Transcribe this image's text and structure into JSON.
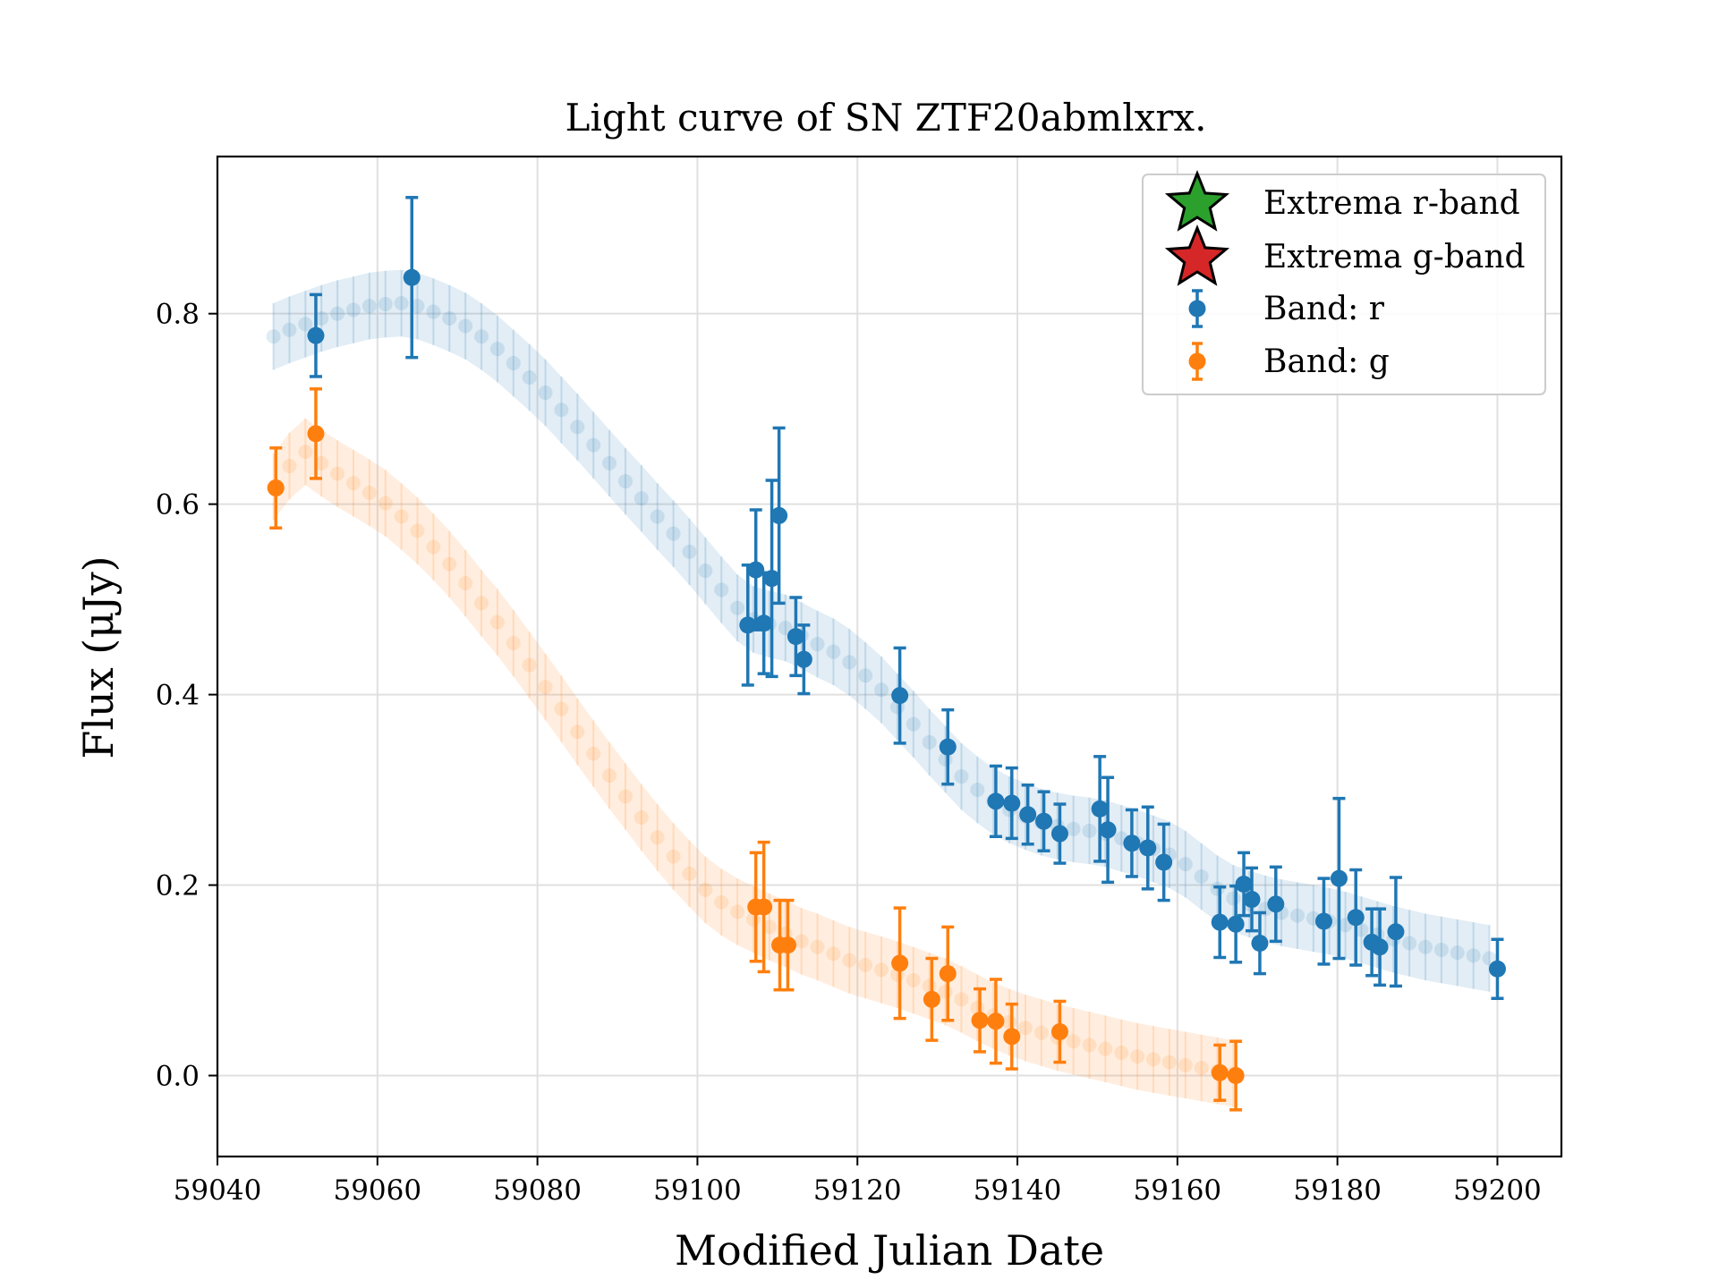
{
  "chart_data": {
    "type": "scatter",
    "title": "Light curve of SN ZTF20abmlxrx.",
    "xlabel": "Modified Julian Date",
    "ylabel": "Flux (μJy)",
    "xlim": [
      59040,
      59208
    ],
    "ylim": [
      -0.085,
      0.965
    ],
    "x_ticks": [
      "59040",
      "59060",
      "59080",
      "59100",
      "59120",
      "59140",
      "59160",
      "59180",
      "59200"
    ],
    "y_ticks": [
      "0.0",
      "0.2",
      "0.4",
      "0.6",
      "0.8"
    ],
    "grid": true,
    "legend_position": "top-right",
    "legend": [
      "Extrema r-band",
      "Extrema g-band",
      "Band: r",
      "Band: g"
    ],
    "colors": {
      "r": "#1f77b4",
      "g": "#ff7f0e",
      "extrema_r": "#2ca02c",
      "extrema_g": "#d62728"
    },
    "series": [
      {
        "name": "Band: r",
        "color": "#1f77b4",
        "points": [
          {
            "x": 59052.3,
            "y": 0.777,
            "err": 0.043
          },
          {
            "x": 59064.3,
            "y": 0.838,
            "err": 0.084
          },
          {
            "x": 59106.3,
            "y": 0.473,
            "err": 0.063
          },
          {
            "x": 59107.3,
            "y": 0.531,
            "err": 0.063
          },
          {
            "x": 59108.3,
            "y": 0.475,
            "err": 0.053
          },
          {
            "x": 59109.3,
            "y": 0.522,
            "err": 0.103
          },
          {
            "x": 59110.2,
            "y": 0.588,
            "err": 0.092
          },
          {
            "x": 59112.3,
            "y": 0.461,
            "err": 0.041
          },
          {
            "x": 59113.3,
            "y": 0.437,
            "err": 0.036
          },
          {
            "x": 59125.3,
            "y": 0.399,
            "err": 0.05
          },
          {
            "x": 59131.3,
            "y": 0.345,
            "err": 0.039
          },
          {
            "x": 59137.3,
            "y": 0.288,
            "err": 0.037
          },
          {
            "x": 59139.3,
            "y": 0.286,
            "err": 0.037
          },
          {
            "x": 59141.3,
            "y": 0.274,
            "err": 0.031
          },
          {
            "x": 59143.3,
            "y": 0.267,
            "err": 0.031
          },
          {
            "x": 59145.3,
            "y": 0.254,
            "err": 0.031
          },
          {
            "x": 59150.3,
            "y": 0.28,
            "err": 0.055
          },
          {
            "x": 59151.3,
            "y": 0.258,
            "err": 0.055
          },
          {
            "x": 59154.3,
            "y": 0.244,
            "err": 0.035
          },
          {
            "x": 59156.3,
            "y": 0.239,
            "err": 0.043
          },
          {
            "x": 59158.3,
            "y": 0.224,
            "err": 0.04
          },
          {
            "x": 59165.3,
            "y": 0.161,
            "err": 0.037
          },
          {
            "x": 59167.3,
            "y": 0.159,
            "err": 0.04
          },
          {
            "x": 59168.3,
            "y": 0.201,
            "err": 0.033
          },
          {
            "x": 59169.3,
            "y": 0.185,
            "err": 0.033
          },
          {
            "x": 59170.3,
            "y": 0.139,
            "err": 0.032
          },
          {
            "x": 59172.3,
            "y": 0.18,
            "err": 0.039
          },
          {
            "x": 59178.3,
            "y": 0.162,
            "err": 0.045
          },
          {
            "x": 59180.2,
            "y": 0.207,
            "err": 0.084
          },
          {
            "x": 59182.3,
            "y": 0.166,
            "err": 0.05
          },
          {
            "x": 59184.3,
            "y": 0.14,
            "err": 0.035
          },
          {
            "x": 59185.3,
            "y": 0.135,
            "err": 0.04
          },
          {
            "x": 59187.3,
            "y": 0.151,
            "err": 0.057
          },
          {
            "x": 59200.0,
            "y": 0.112,
            "err": 0.031
          }
        ],
        "model": {
          "x": [
            59047,
            59049,
            59051,
            59053,
            59055,
            59057,
            59059,
            59061,
            59063,
            59065,
            59067,
            59069,
            59071,
            59073,
            59075,
            59077,
            59079,
            59081,
            59083,
            59085,
            59087,
            59089,
            59091,
            59093,
            59095,
            59097,
            59099,
            59101,
            59103,
            59105,
            59107,
            59109,
            59111,
            59113,
            59115,
            59117,
            59119,
            59121,
            59123,
            59125,
            59127,
            59129,
            59131,
            59133,
            59135,
            59137,
            59139,
            59141,
            59143,
            59145,
            59147,
            59149,
            59151,
            59153,
            59155,
            59157,
            59159,
            59161,
            59163,
            59165,
            59167,
            59169,
            59171,
            59173,
            59175,
            59177,
            59179,
            59181,
            59183,
            59185,
            59187,
            59189,
            59191,
            59193,
            59195,
            59197,
            59199
          ],
          "y": [
            0.776,
            0.783,
            0.789,
            0.795,
            0.8,
            0.804,
            0.808,
            0.81,
            0.811,
            0.808,
            0.802,
            0.795,
            0.787,
            0.776,
            0.763,
            0.748,
            0.733,
            0.717,
            0.699,
            0.681,
            0.662,
            0.643,
            0.624,
            0.606,
            0.587,
            0.569,
            0.55,
            0.53,
            0.51,
            0.491,
            0.479,
            0.474,
            0.47,
            0.462,
            0.453,
            0.445,
            0.434,
            0.42,
            0.405,
            0.387,
            0.369,
            0.35,
            0.332,
            0.314,
            0.3,
            0.288,
            0.279,
            0.272,
            0.266,
            0.262,
            0.259,
            0.257,
            0.254,
            0.249,
            0.244,
            0.238,
            0.232,
            0.222,
            0.209,
            0.196,
            0.186,
            0.18,
            0.175,
            0.171,
            0.168,
            0.165,
            0.162,
            0.158,
            0.153,
            0.148,
            0.143,
            0.139,
            0.135,
            0.132,
            0.129,
            0.126,
            0.123
          ],
          "err": 0.035
        }
      },
      {
        "name": "Band: g",
        "color": "#ff7f0e",
        "points": [
          {
            "x": 59047.3,
            "y": 0.617,
            "err": 0.042
          },
          {
            "x": 59052.3,
            "y": 0.674,
            "err": 0.047
          },
          {
            "x": 59107.3,
            "y": 0.177,
            "err": 0.057
          },
          {
            "x": 59108.3,
            "y": 0.177,
            "err": 0.068
          },
          {
            "x": 59110.3,
            "y": 0.137,
            "err": 0.047
          },
          {
            "x": 59111.3,
            "y": 0.137,
            "err": 0.047
          },
          {
            "x": 59125.3,
            "y": 0.118,
            "err": 0.058
          },
          {
            "x": 59129.3,
            "y": 0.08,
            "err": 0.043
          },
          {
            "x": 59131.3,
            "y": 0.107,
            "err": 0.049
          },
          {
            "x": 59135.3,
            "y": 0.058,
            "err": 0.033
          },
          {
            "x": 59137.3,
            "y": 0.057,
            "err": 0.044
          },
          {
            "x": 59139.3,
            "y": 0.041,
            "err": 0.034
          },
          {
            "x": 59145.3,
            "y": 0.046,
            "err": 0.032
          },
          {
            "x": 59165.3,
            "y": 0.003,
            "err": 0.029
          },
          {
            "x": 59167.3,
            "y": 0.0,
            "err": 0.036
          }
        ],
        "model": {
          "x": [
            59047,
            59049,
            59051,
            59053,
            59055,
            59057,
            59059,
            59061,
            59063,
            59065,
            59067,
            59069,
            59071,
            59073,
            59075,
            59077,
            59079,
            59081,
            59083,
            59085,
            59087,
            59089,
            59091,
            59093,
            59095,
            59097,
            59099,
            59101,
            59103,
            59105,
            59107,
            59109,
            59111,
            59113,
            59115,
            59117,
            59119,
            59121,
            59123,
            59125,
            59127,
            59129,
            59131,
            59133,
            59135,
            59137,
            59139,
            59141,
            59143,
            59145,
            59147,
            59149,
            59151,
            59153,
            59155,
            59157,
            59159,
            59161,
            59163,
            59165,
            59167
          ],
          "y": [
            0.618,
            0.64,
            0.655,
            0.643,
            0.632,
            0.622,
            0.612,
            0.601,
            0.587,
            0.572,
            0.555,
            0.537,
            0.517,
            0.496,
            0.476,
            0.454,
            0.431,
            0.408,
            0.385,
            0.361,
            0.338,
            0.315,
            0.293,
            0.271,
            0.25,
            0.23,
            0.212,
            0.195,
            0.182,
            0.172,
            0.164,
            0.156,
            0.149,
            0.141,
            0.135,
            0.128,
            0.121,
            0.116,
            0.111,
            0.106,
            0.1,
            0.094,
            0.088,
            0.08,
            0.071,
            0.063,
            0.056,
            0.05,
            0.045,
            0.04,
            0.036,
            0.032,
            0.028,
            0.024,
            0.02,
            0.017,
            0.014,
            0.011,
            0.008,
            0.005,
            0.002
          ],
          "err": 0.035
        }
      }
    ]
  }
}
